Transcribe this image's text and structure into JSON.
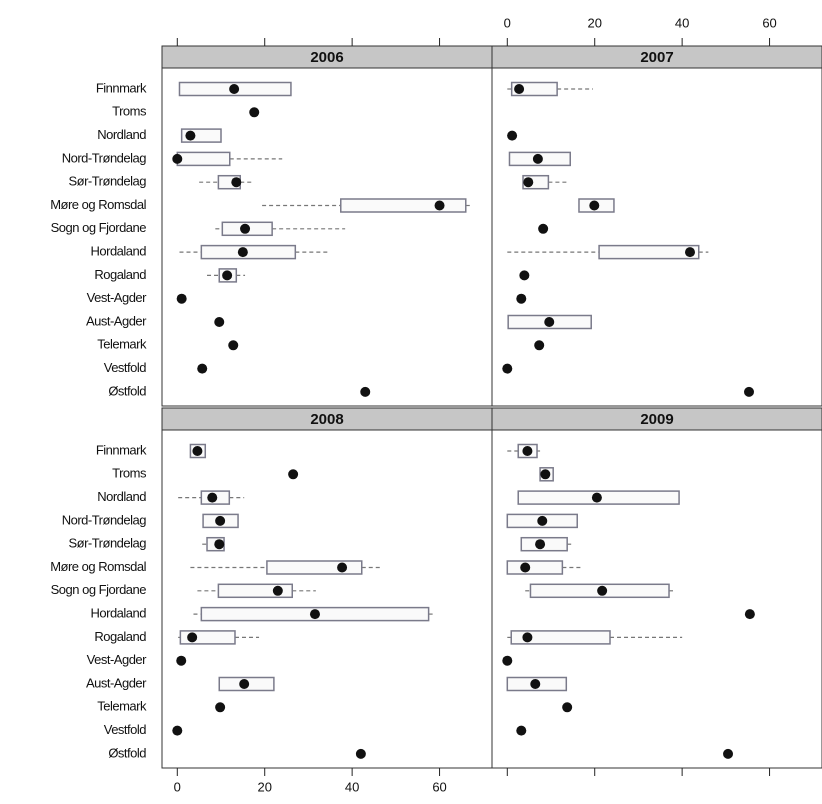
{
  "chart_data": {
    "type": "box",
    "categories": [
      "Finnmark",
      "Troms",
      "Nordland",
      "Nord-Trøndelag",
      "Sør-Trøndelag",
      "Møre og Romsdal",
      "Sogn og Fjordane",
      "Hordaland",
      "Rogaland",
      "Vest-Agder",
      "Aust-Agder",
      "Telemark",
      "Vestfold",
      "Østfold"
    ],
    "xlim": [
      -3.5,
      72
    ],
    "xticks": [
      0,
      20,
      40,
      60
    ],
    "panels": [
      {
        "title": "2006",
        "min": [
          0.5,
          17.6,
          1,
          0,
          5,
          19.4,
          8.7,
          0.5,
          6.8,
          1,
          9.6,
          12.8,
          5.7,
          43
        ],
        "q1": [
          0.5,
          17.6,
          1,
          0,
          9.4,
          37.4,
          10.3,
          5.5,
          9.6,
          1,
          9.6,
          12.8,
          5.7,
          43
        ],
        "median": [
          13,
          17.6,
          3,
          0,
          13.5,
          60,
          15.5,
          15,
          11.4,
          1,
          9.6,
          12.8,
          5.7,
          43
        ],
        "q3": [
          26,
          17.6,
          10,
          12,
          14.4,
          66,
          21.7,
          27,
          13.5,
          1,
          9.6,
          12.8,
          5.7,
          43
        ],
        "max": [
          26,
          17.6,
          10,
          24,
          17,
          67.6,
          38.4,
          34.5,
          15.5,
          1,
          9.6,
          12.8,
          5.7,
          43
        ]
      },
      {
        "title": "2007",
        "min": [
          0,
          null,
          1.1,
          0.5,
          3.6,
          16.4,
          8.2,
          0,
          3.9,
          3.2,
          0.2,
          7.3,
          0,
          55.3
        ],
        "q1": [
          1,
          null,
          1.1,
          0.5,
          3.6,
          16.4,
          8.2,
          21,
          3.9,
          3.2,
          0.2,
          7.3,
          0,
          55.3
        ],
        "median": [
          2.7,
          null,
          1.1,
          7,
          4.8,
          19.9,
          8.2,
          41.8,
          3.9,
          3.2,
          9.6,
          7.3,
          0,
          55.3
        ],
        "q3": [
          11.4,
          null,
          1.1,
          14.4,
          9.4,
          24.4,
          8.2,
          43.8,
          3.9,
          3.2,
          19.2,
          7.3,
          0,
          55.3
        ],
        "max": [
          19.6,
          null,
          1.1,
          14.4,
          13.7,
          24.4,
          8.2,
          46,
          3.9,
          3.2,
          19.2,
          7.3,
          0,
          55.3
        ]
      },
      {
        "title": "2008",
        "min": [
          3,
          26.5,
          0.2,
          5.9,
          5.7,
          3,
          4.6,
          3.7,
          0.2,
          0.9,
          9.6,
          9.8,
          0,
          42
        ],
        "q1": [
          3,
          26.5,
          5.5,
          5.9,
          6.8,
          20.5,
          9.4,
          5.5,
          0.7,
          0.9,
          9.6,
          9.8,
          0,
          42
        ],
        "median": [
          4.6,
          26.5,
          8,
          9.8,
          9.6,
          37.7,
          23,
          31.5,
          3.4,
          0.9,
          15.3,
          9.8,
          0,
          42
        ],
        "q3": [
          6.4,
          26.5,
          11.9,
          13.9,
          10.7,
          42.2,
          26.3,
          57.5,
          13.2,
          0.9,
          22.1,
          9.8,
          0,
          42
        ],
        "max": [
          6.4,
          26.5,
          15.3,
          13.9,
          10.7,
          46.6,
          31.7,
          59.1,
          18.7,
          0.9,
          22.1,
          9.8,
          0,
          42
        ]
      },
      {
        "title": "2009",
        "min": [
          0,
          7.5,
          2.5,
          0,
          3.2,
          0,
          4.1,
          55.5,
          0,
          0,
          0,
          13.7,
          3.2,
          50.5
        ],
        "q1": [
          2.5,
          7.5,
          2.5,
          0,
          3.2,
          0,
          5.3,
          55.5,
          0.9,
          0,
          0,
          13.7,
          3.2,
          50.5
        ],
        "median": [
          4.6,
          8.7,
          20.5,
          8,
          7.5,
          4.1,
          21.7,
          55.5,
          4.6,
          0,
          6.4,
          13.7,
          3.2,
          50.5
        ],
        "q3": [
          6.8,
          10.5,
          39.3,
          16,
          13.7,
          12.6,
          37,
          55.5,
          23.5,
          0,
          13.5,
          13.7,
          3.2,
          50.5
        ],
        "max": [
          7.5,
          10.5,
          39.3,
          16,
          15.3,
          17.1,
          38.1,
          55.5,
          40,
          0,
          13.5,
          13.7,
          3.2,
          50.5
        ]
      }
    ]
  }
}
